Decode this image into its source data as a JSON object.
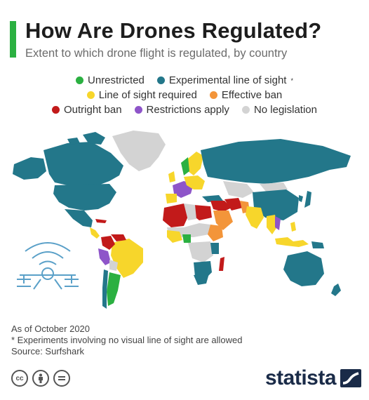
{
  "header": {
    "title": "How Are Drones Regulated?",
    "subtitle": "Extent to which drone flight is regulated, by country"
  },
  "legend": [
    {
      "label": "Unrestricted",
      "color": "#2bb041",
      "sup": ""
    },
    {
      "label": "Experimental line of sight",
      "color": "#23778a",
      "sup": "*"
    },
    {
      "label": "Line of sight required",
      "color": "#f7d62b",
      "sup": ""
    },
    {
      "label": "Effective ban",
      "color": "#f3953a",
      "sup": ""
    },
    {
      "label": "Outright ban",
      "color": "#c21a1a",
      "sup": ""
    },
    {
      "label": "Restrictions apply",
      "color": "#8e55c9",
      "sup": ""
    },
    {
      "label": "No legislation",
      "color": "#d3d3d3",
      "sup": ""
    }
  ],
  "notes": {
    "date": "As of October 2020",
    "footnote": "* Experiments involving no visual line of sight are allowed",
    "source": "Source: Surfshark"
  },
  "footer": {
    "license_icons": [
      "cc-icon",
      "by-icon",
      "nd-icon"
    ],
    "brand": "statista"
  }
}
